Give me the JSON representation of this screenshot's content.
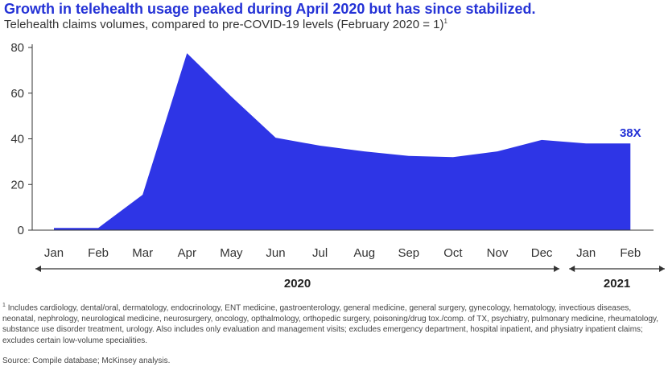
{
  "title": "Growth in telehealth usage peaked during April 2020 but has since stabilized.",
  "subtitle": "Telehealth claims volumes, compared to pre-COVID-19 levels (February 2020 = 1)",
  "subtitle_footnote_mark": "1",
  "colors": {
    "area": "#2e35e6",
    "title": "#2432d6",
    "annotation": "#2432d6",
    "axis": "#333333"
  },
  "chart_data": {
    "type": "area",
    "title": "Growth in telehealth usage peaked during April 2020 but has since stabilized.",
    "subtitle": "Telehealth claims volumes, compared to pre-COVID-19 levels (February 2020 = 1)",
    "categories": [
      "Jan",
      "Feb",
      "Mar",
      "Apr",
      "May",
      "Jun",
      "Jul",
      "Aug",
      "Sep",
      "Oct",
      "Nov",
      "Dec",
      "Jan",
      "Feb"
    ],
    "values": [
      1,
      1,
      15.5,
      77.5,
      58.5,
      40.5,
      37,
      34.5,
      32.5,
      32,
      34.5,
      39.5,
      38,
      38
    ],
    "ylim": [
      0,
      80
    ],
    "yticks": [
      "0",
      "20",
      "40",
      "60",
      "80"
    ],
    "grid": false,
    "annotation": {
      "text": "38X",
      "category_index": 13
    },
    "year_groups": [
      {
        "label": "2020",
        "start_index": 0,
        "end_index": 11
      },
      {
        "label": "2021",
        "start_index": 12,
        "end_index": 13
      }
    ]
  },
  "footnote": {
    "mark": "1",
    "text": "Includes cardiology, dental/oral, dermatology, endocrinology, ENT medicine, gastroenterology, general medicine, general surgery, gynecology, hematology, invectious diseases, neonatal, nephrology, neurological medicine, neurosurgery, oncology, opthalmology, orthopedic surgery, poisoning/drug tox./comp. of TX, psychiatry, pulmonary medicine, rheumatology, substance use disorder treatment, urology. Also includes only evaluation and management visits; excludes emergency department, hospital inpatient, and physiatry inpatient claims; excludes certain low-volume specialities."
  },
  "source": "Source: Compile database; McKinsey analysis."
}
